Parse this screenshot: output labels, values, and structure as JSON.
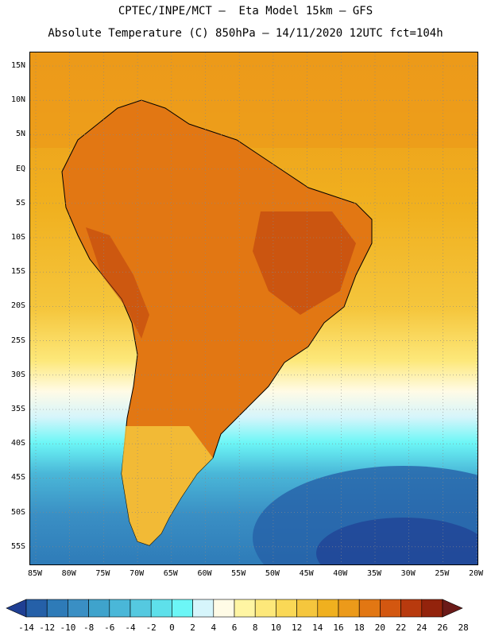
{
  "header": {
    "line1": "CPTEC/INPE/MCT –  Eta Model 15km – GFS",
    "line2": "Absolute Temperature (C) 850hPa – 14/11/2020 12UTC fct=104h"
  },
  "map": {
    "lat_labels": [
      "15N",
      "10N",
      "5N",
      "EQ",
      "5S",
      "10S",
      "15S",
      "20S",
      "25S",
      "30S",
      "35S",
      "40S",
      "45S",
      "50S",
      "55S"
    ],
    "lon_labels": [
      "85W",
      "80W",
      "75W",
      "70W",
      "65W",
      "60W",
      "55W",
      "50W",
      "45W",
      "40W",
      "35W",
      "30W",
      "25W",
      "20W"
    ]
  },
  "colorbar": {
    "labels": [
      "-14",
      "-12",
      "-10",
      "-8",
      "-6",
      "-4",
      "-2",
      "0",
      "2",
      "4",
      "6",
      "8",
      "10",
      "12",
      "14",
      "16",
      "18",
      "20",
      "22",
      "24",
      "26",
      "28"
    ],
    "colors": [
      "#1f3f93",
      "#2560a8",
      "#2e7bb8",
      "#3a8fc4",
      "#3fa3cc",
      "#4ab7d8",
      "#55c9e0",
      "#5ee0ea",
      "#6cf6f6",
      "#d6f5fb",
      "#fffbe6",
      "#fff5a3",
      "#fde87a",
      "#fad856",
      "#f5c63d",
      "#f0b01f",
      "#ec9a1a",
      "#e27713",
      "#d35710",
      "#b83a0e",
      "#93230c",
      "#6b1a18"
    ]
  }
}
